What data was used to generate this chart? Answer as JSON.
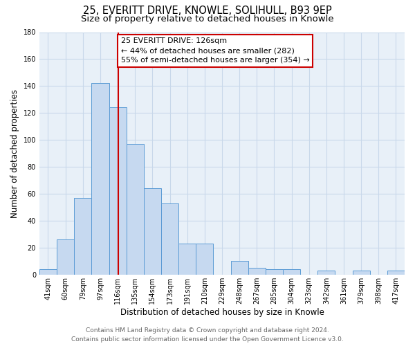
{
  "title_line1": "25, EVERITT DRIVE, KNOWLE, SOLIHULL, B93 9EP",
  "title_line2": "Size of property relative to detached houses in Knowle",
  "xlabel": "Distribution of detached houses by size in Knowle",
  "ylabel": "Number of detached properties",
  "bar_color": "#c6d9f0",
  "bar_edge_color": "#5b9bd5",
  "bin_labels": [
    "41sqm",
    "60sqm",
    "79sqm",
    "97sqm",
    "116sqm",
    "135sqm",
    "154sqm",
    "173sqm",
    "191sqm",
    "210sqm",
    "229sqm",
    "248sqm",
    "267sqm",
    "285sqm",
    "304sqm",
    "323sqm",
    "342sqm",
    "361sqm",
    "379sqm",
    "398sqm",
    "417sqm"
  ],
  "bar_values": [
    4,
    26,
    57,
    142,
    124,
    97,
    64,
    53,
    23,
    23,
    0,
    10,
    5,
    4,
    4,
    0,
    3,
    0,
    3,
    0,
    3
  ],
  "bin_edges": [
    41,
    60,
    79,
    97,
    116,
    135,
    154,
    173,
    191,
    210,
    229,
    248,
    267,
    285,
    304,
    323,
    342,
    361,
    379,
    398,
    417,
    436
  ],
  "ylim": [
    0,
    180
  ],
  "yticks": [
    0,
    20,
    40,
    60,
    80,
    100,
    120,
    140,
    160,
    180
  ],
  "vline_x": 126,
  "vline_color": "#cc0000",
  "annotation_box_text": "25 EVERITT DRIVE: 126sqm\n← 44% of detached houses are smaller (282)\n55% of semi-detached houses are larger (354) →",
  "footer_line1": "Contains HM Land Registry data © Crown copyright and database right 2024.",
  "footer_line2": "Contains public sector information licensed under the Open Government Licence v3.0.",
  "bg_color": "#ffffff",
  "grid_color": "#c8d8ea",
  "title_fontsize": 10.5,
  "subtitle_fontsize": 9.5,
  "axis_label_fontsize": 8.5,
  "tick_fontsize": 7,
  "annotation_fontsize": 8,
  "footer_fontsize": 6.5
}
